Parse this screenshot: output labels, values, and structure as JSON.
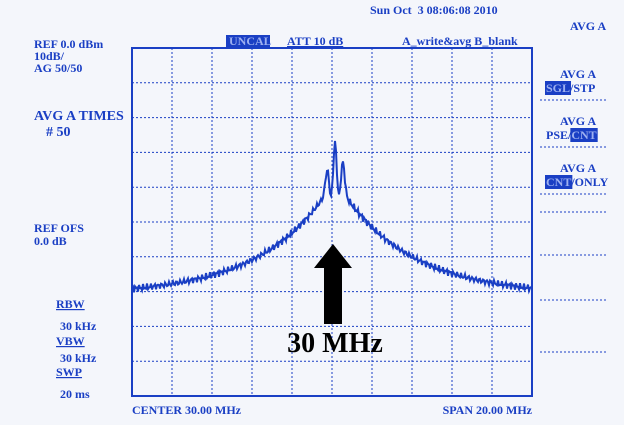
{
  "header": {
    "datetime": "Sun Oct  3 08:06:08 2010",
    "mode": "AVG A"
  },
  "status": {
    "uncal": "UNCAL",
    "attenuation": "ATT 10 dB",
    "trace_mode": "A_write&avg B_blank"
  },
  "left_panel": {
    "reference": "REF 0.0 dBm",
    "scale": "10dB/",
    "average": "AG 50/50",
    "avg_times": "AVG A TIMES",
    "avg_count": "# 50",
    "ref_offset_label": "REF OFS",
    "ref_offset": "0.0 dB",
    "rbw_label": "RBW",
    "rbw": "30 kHz",
    "vbw_label": "VBW",
    "vbw": "30 kHz",
    "sweep_label": "SWP",
    "sweep": "20 ms"
  },
  "softkeys": [
    {
      "title": "AVG A",
      "highlight": "SGL",
      "rest": "/STP"
    },
    {
      "title": "AVG A",
      "rest": "PSE/",
      "highlight": "CNT"
    },
    {
      "title": "AVG A",
      "highlight": "CNT",
      "rest": "/ONLY"
    }
  ],
  "footer": {
    "center": "CENTER 30.00 MHz",
    "span": "SPAN 20.00 MHz"
  },
  "annotation": "30 MHz"
}
